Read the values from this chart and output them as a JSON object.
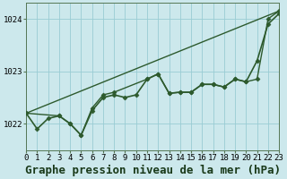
{
  "background_color": "#cce8ec",
  "grid_color": "#99ccd4",
  "line_color": "#2d5a2d",
  "title": "Graphe pression niveau de la mer (hPa)",
  "xlim": [
    0,
    23
  ],
  "ylim": [
    1021.5,
    1024.3
  ],
  "yticks": [
    1022,
    1023,
    1024
  ],
  "xticks": [
    0,
    1,
    2,
    3,
    4,
    5,
    6,
    7,
    8,
    9,
    10,
    11,
    12,
    13,
    14,
    15,
    16,
    17,
    18,
    19,
    20,
    21,
    22,
    23
  ],
  "series": [
    {
      "x": [
        0,
        23
      ],
      "y": [
        1022.2,
        1024.15
      ],
      "marker": null,
      "linewidth": 1.0,
      "linestyle": "-"
    },
    {
      "x": [
        0,
        1,
        2,
        3,
        4,
        5,
        6,
        7,
        8,
        9,
        10,
        11,
        12,
        13,
        14,
        15,
        16,
        17,
        18,
        19,
        20,
        21,
        22,
        23
      ],
      "y": [
        1022.2,
        1021.9,
        1022.1,
        1022.15,
        1022.0,
        1021.78,
        1022.25,
        1022.5,
        1022.55,
        1022.5,
        1022.55,
        1022.85,
        1022.95,
        1022.58,
        1022.6,
        1022.6,
        1022.75,
        1022.75,
        1022.7,
        1022.85,
        1022.8,
        1023.2,
        1023.9,
        1024.1
      ],
      "marker": "D",
      "markersize": 2.5,
      "linewidth": 1.2,
      "linestyle": "-"
    },
    {
      "x": [
        0,
        3,
        4,
        5,
        6,
        7,
        8,
        11,
        12,
        13,
        14,
        15,
        16,
        17,
        18,
        19,
        20,
        21,
        22,
        23
      ],
      "y": [
        1022.2,
        1022.15,
        1022.0,
        1021.78,
        1022.3,
        1022.55,
        1022.6,
        1022.85,
        1022.95,
        1022.58,
        1022.6,
        1022.6,
        1022.75,
        1022.75,
        1022.7,
        1022.85,
        1022.8,
        1022.85,
        1024.0,
        1024.15
      ],
      "marker": "D",
      "markersize": 2.5,
      "linewidth": 1.0,
      "linestyle": "-"
    }
  ],
  "title_fontsize": 9,
  "tick_fontsize": 6.5
}
